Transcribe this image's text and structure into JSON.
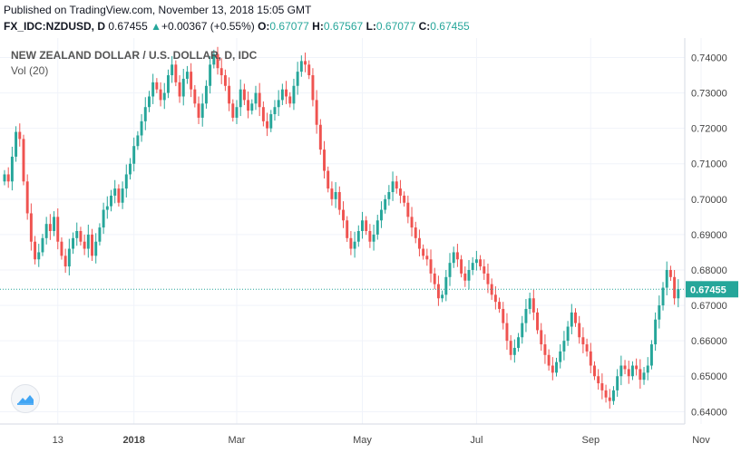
{
  "header": {
    "published": "Published on TradingView.com, November 13, 2018 15:05 GMT",
    "symbol": "FX_IDC:NZDUSD, D",
    "last": "0.67455",
    "change_arrow": "▲",
    "change": "+0.00367 (+0.55%)",
    "o_label": "O:",
    "o_value": "0.67077",
    "h_label": "H:",
    "h_value": "0.67567",
    "l_label": "L:",
    "l_value": "0.67077",
    "c_label": "C:",
    "c_value": "0.67455"
  },
  "chart_title": "NEW ZEALAND DOLLAR / U.S. DOLLAR, D, IDC",
  "volume_label": "Vol (20)",
  "logo_icon": "tradingview-cloud-icon",
  "colors": {
    "up": "#26a69a",
    "down": "#ef5350",
    "grid": "#f0f3fa",
    "price_line": "#26a69a"
  },
  "chart_data": {
    "type": "candlestick",
    "title": "NEW ZEALAND DOLLAR / U.S. DOLLAR, D, IDC",
    "ylim": [
      0.6365,
      0.7455
    ],
    "y_ticks": [
      "0.74000",
      "0.73000",
      "0.72000",
      "0.71000",
      "0.70000",
      "0.69000",
      "0.68000",
      "0.67000",
      "0.66000",
      "0.65000",
      "0.64000"
    ],
    "x_ticks": [
      {
        "label": "13",
        "index": 14
      },
      {
        "label": "2018",
        "index": 34
      },
      {
        "label": "Mar",
        "index": 61
      },
      {
        "label": "May",
        "index": 94
      },
      {
        "label": "Jul",
        "index": 124
      },
      {
        "label": "Sep",
        "index": 154
      },
      {
        "label": "Nov",
        "index": 183
      }
    ],
    "last_price": 0.67455,
    "last_price_label": "0.67455",
    "closes": [
      0.707,
      0.705,
      0.712,
      0.719,
      0.717,
      0.705,
      0.696,
      0.688,
      0.683,
      0.685,
      0.689,
      0.693,
      0.691,
      0.695,
      0.688,
      0.684,
      0.681,
      0.686,
      0.689,
      0.691,
      0.688,
      0.686,
      0.69,
      0.684,
      0.688,
      0.692,
      0.697,
      0.698,
      0.701,
      0.703,
      0.699,
      0.703,
      0.707,
      0.71,
      0.715,
      0.718,
      0.722,
      0.726,
      0.729,
      0.733,
      0.731,
      0.728,
      0.73,
      0.735,
      0.738,
      0.733,
      0.729,
      0.734,
      0.736,
      0.731,
      0.727,
      0.723,
      0.727,
      0.732,
      0.738,
      0.741,
      0.737,
      0.735,
      0.732,
      0.727,
      0.723,
      0.726,
      0.731,
      0.728,
      0.725,
      0.727,
      0.73,
      0.726,
      0.722,
      0.72,
      0.724,
      0.726,
      0.728,
      0.731,
      0.729,
      0.727,
      0.732,
      0.736,
      0.739,
      0.738,
      0.735,
      0.728,
      0.721,
      0.714,
      0.708,
      0.703,
      0.7,
      0.702,
      0.697,
      0.694,
      0.689,
      0.686,
      0.688,
      0.691,
      0.694,
      0.691,
      0.688,
      0.69,
      0.694,
      0.697,
      0.7,
      0.702,
      0.705,
      0.703,
      0.701,
      0.699,
      0.695,
      0.692,
      0.689,
      0.686,
      0.684,
      0.683,
      0.679,
      0.676,
      0.672,
      0.673,
      0.678,
      0.682,
      0.685,
      0.683,
      0.679,
      0.677,
      0.68,
      0.682,
      0.683,
      0.681,
      0.679,
      0.676,
      0.673,
      0.671,
      0.669,
      0.665,
      0.66,
      0.656,
      0.658,
      0.661,
      0.665,
      0.669,
      0.672,
      0.668,
      0.663,
      0.659,
      0.656,
      0.653,
      0.651,
      0.654,
      0.657,
      0.66,
      0.664,
      0.668,
      0.665,
      0.661,
      0.659,
      0.657,
      0.653,
      0.65,
      0.648,
      0.646,
      0.644,
      0.643,
      0.646,
      0.65,
      0.653,
      0.652,
      0.65,
      0.653,
      0.652,
      0.649,
      0.651,
      0.653,
      0.659,
      0.666,
      0.67,
      0.675,
      0.68,
      0.678,
      0.672,
      0.6746
    ]
  }
}
